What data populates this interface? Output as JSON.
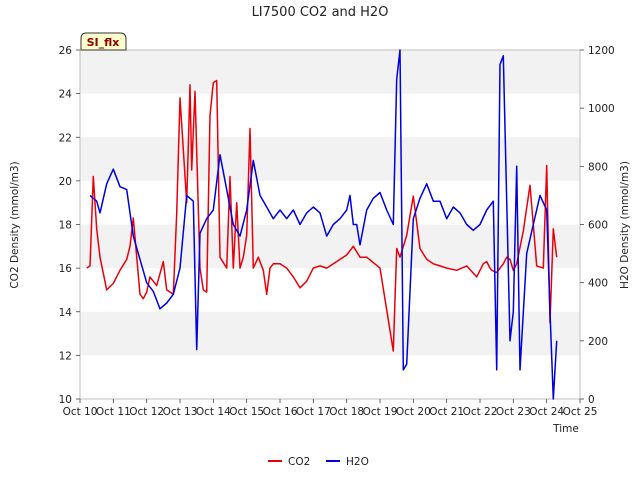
{
  "chart_data": {
    "type": "line",
    "title": "LI7500 CO2 and H2O",
    "xlabel": "Time",
    "ylabel_left": "CO2 Density (mmol/m3)",
    "ylabel_right": "H2O Density (mmol/m3)",
    "badge": "SI_flx",
    "x_ticks": [
      "Oct 10",
      "Oct 11",
      "Oct 12",
      "Oct 13",
      "Oct 14",
      "Oct 15",
      "Oct 16",
      "Oct 17",
      "Oct 18",
      "Oct 19",
      "Oct 20",
      "Oct 21",
      "Oct 22",
      "Oct 23",
      "Oct 24",
      "Oct 25"
    ],
    "xlim": [
      10,
      25
    ],
    "ylim_left": [
      10,
      26
    ],
    "ylim_right": [
      0,
      1200
    ],
    "y_ticks_left": [
      "10",
      "12",
      "14",
      "16",
      "18",
      "20",
      "22",
      "24",
      "26"
    ],
    "y_ticks_right": [
      "0",
      "200",
      "400",
      "600",
      "800",
      "1000",
      "1200"
    ],
    "grid": "horizontal bands",
    "legend_position": "bottom-center",
    "colors": {
      "CO2": "#e8000b",
      "H2O": "#0000e0",
      "band": "#f2f2f2"
    },
    "series": [
      {
        "name": "CO2",
        "axis": "left",
        "x": [
          10.2,
          10.3,
          10.4,
          10.5,
          10.6,
          10.8,
          11.0,
          11.2,
          11.4,
          11.5,
          11.6,
          11.8,
          11.9,
          12.0,
          12.1,
          12.3,
          12.5,
          12.6,
          12.8,
          12.9,
          13.0,
          13.2,
          13.3,
          13.35,
          13.45,
          13.6,
          13.7,
          13.8,
          13.9,
          14.0,
          14.1,
          14.2,
          14.4,
          14.5,
          14.6,
          14.7,
          14.8,
          14.9,
          15.0,
          15.1,
          15.2,
          15.35,
          15.5,
          15.6,
          15.7,
          15.8,
          16.0,
          16.2,
          16.4,
          16.6,
          16.8,
          17.0,
          17.2,
          17.4,
          17.8,
          18.0,
          18.2,
          18.4,
          18.6,
          19.0,
          19.4,
          19.5,
          19.6,
          19.8,
          20.0,
          20.2,
          20.4,
          20.6,
          20.8,
          21.0,
          21.3,
          21.6,
          21.9,
          22.1,
          22.2,
          22.3,
          22.35,
          22.5,
          22.7,
          22.8,
          22.9,
          23.0,
          23.1,
          23.3,
          23.5,
          23.7,
          23.9,
          24.0,
          24.1,
          24.2,
          24.3
        ],
        "values": [
          16.0,
          16.1,
          20.2,
          17.8,
          16.5,
          15.0,
          15.3,
          15.9,
          16.4,
          17.0,
          18.3,
          14.8,
          14.6,
          14.9,
          15.6,
          15.2,
          16.3,
          15.0,
          14.8,
          18.5,
          23.8,
          19.0,
          24.4,
          20.5,
          24.1,
          16.0,
          15.0,
          14.9,
          23.0,
          24.5,
          24.6,
          16.5,
          16.0,
          20.2,
          16.0,
          19.0,
          16.0,
          16.5,
          17.5,
          22.4,
          16.0,
          16.5,
          15.9,
          14.8,
          16.0,
          16.2,
          16.2,
          16.0,
          15.6,
          15.1,
          15.4,
          16.0,
          16.1,
          16.0,
          16.4,
          16.6,
          17.0,
          16.5,
          16.5,
          16.0,
          12.2,
          16.9,
          16.5,
          17.5,
          19.3,
          16.9,
          16.4,
          16.2,
          16.1,
          16.0,
          15.9,
          16.1,
          15.6,
          16.2,
          16.3,
          16.0,
          15.9,
          15.8,
          16.2,
          16.5,
          16.4,
          15.9,
          16.2,
          17.7,
          19.8,
          16.1,
          16.0,
          20.7,
          13.5,
          17.8,
          16.5
        ]
      },
      {
        "name": "H2O",
        "axis": "right",
        "x": [
          10.3,
          10.5,
          10.6,
          10.8,
          11.0,
          11.2,
          11.4,
          11.6,
          11.8,
          12.0,
          12.2,
          12.4,
          12.6,
          12.8,
          13.0,
          13.2,
          13.4,
          13.5,
          13.6,
          13.8,
          14.0,
          14.2,
          14.4,
          14.6,
          14.8,
          15.0,
          15.2,
          15.4,
          15.6,
          15.8,
          16.0,
          16.2,
          16.4,
          16.6,
          16.8,
          17.0,
          17.2,
          17.4,
          17.6,
          17.8,
          18.0,
          18.1,
          18.2,
          18.3,
          18.4,
          18.6,
          18.8,
          19.0,
          19.2,
          19.4,
          19.5,
          19.6,
          19.7,
          19.8,
          20.0,
          20.2,
          20.4,
          20.6,
          20.8,
          21.0,
          21.2,
          21.4,
          21.6,
          21.8,
          22.0,
          22.2,
          22.4,
          22.5,
          22.6,
          22.7,
          22.9,
          23.0,
          23.1,
          23.2,
          23.4,
          23.6,
          23.8,
          24.0,
          24.1,
          24.2,
          24.3
        ],
        "values": [
          700,
          680,
          640,
          740,
          790,
          730,
          720,
          560,
          480,
          400,
          370,
          310,
          330,
          360,
          450,
          700,
          680,
          170,
          570,
          620,
          650,
          840,
          720,
          600,
          560,
          650,
          820,
          700,
          660,
          620,
          650,
          620,
          650,
          600,
          640,
          660,
          640,
          560,
          600,
          620,
          650,
          700,
          600,
          600,
          530,
          650,
          690,
          710,
          650,
          600,
          1100,
          1200,
          100,
          120,
          620,
          690,
          740,
          680,
          680,
          620,
          660,
          640,
          600,
          580,
          600,
          650,
          680,
          100,
          1150,
          1180,
          200,
          300,
          800,
          100,
          500,
          600,
          700,
          650,
          300,
          0,
          200
        ]
      }
    ]
  }
}
